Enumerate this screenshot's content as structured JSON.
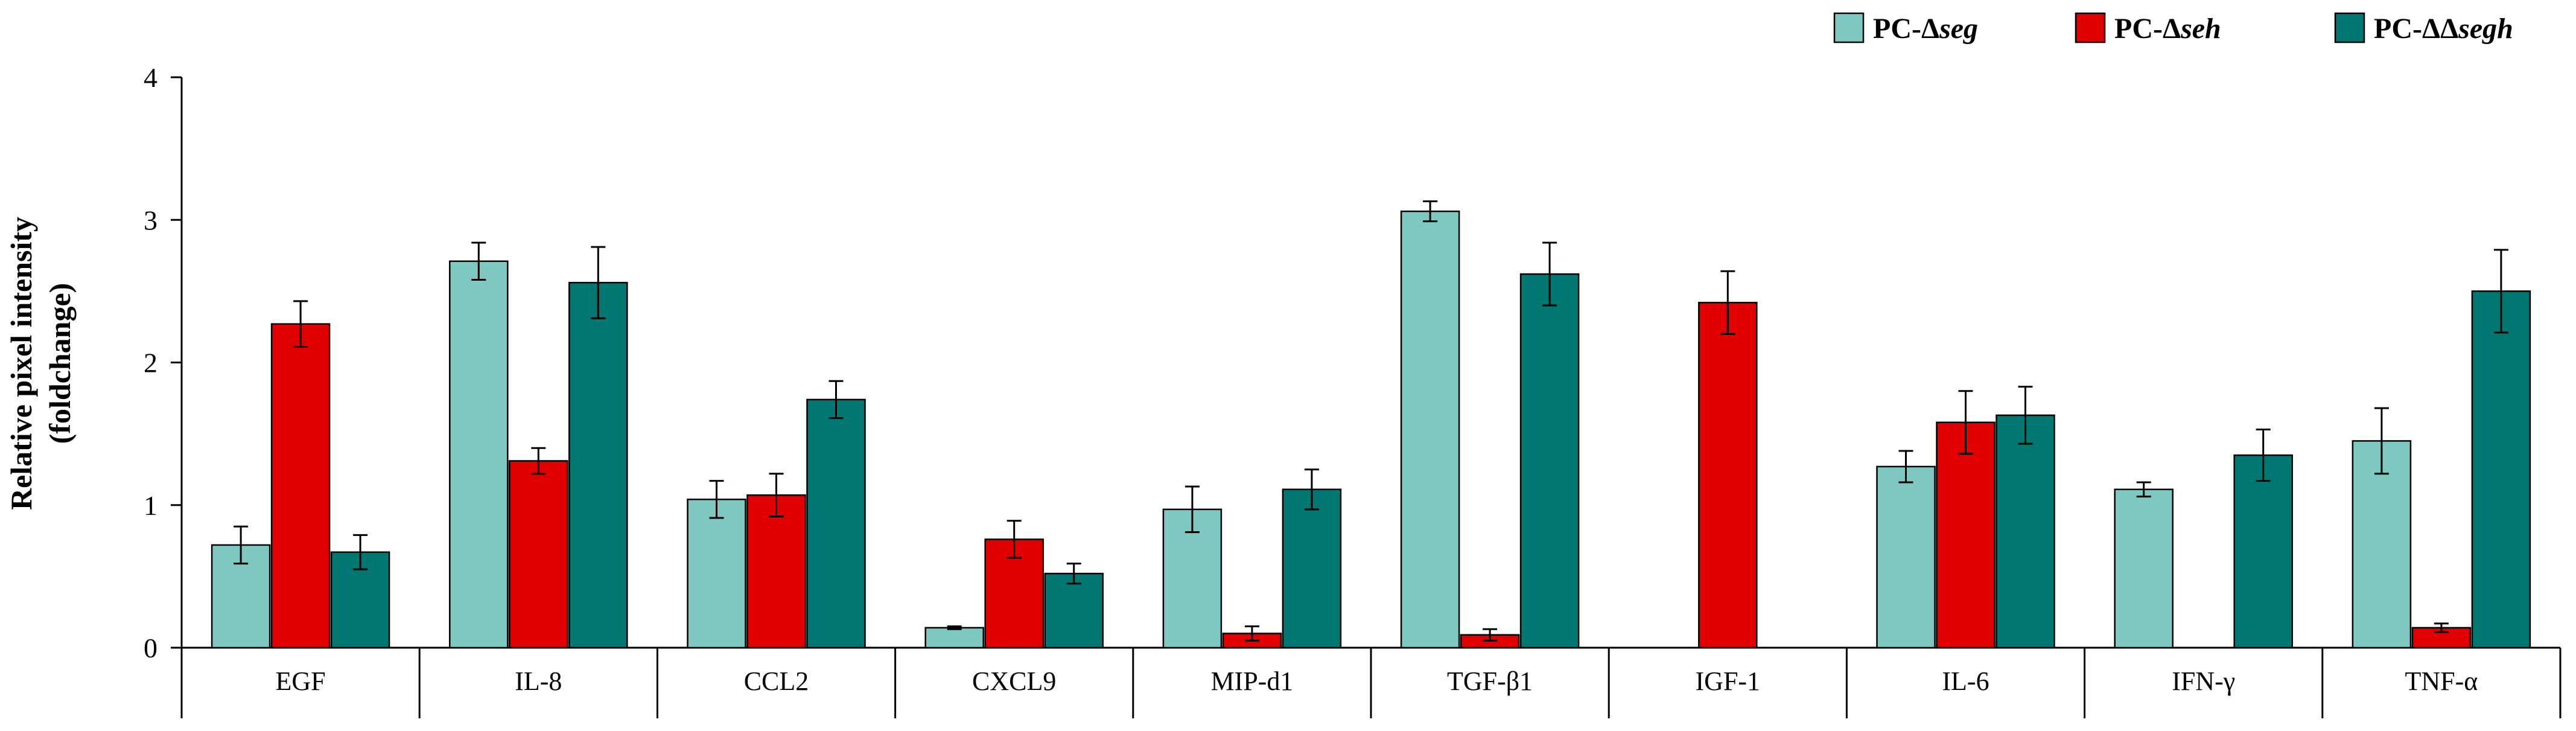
{
  "chart_data": {
    "type": "bar",
    "title": "",
    "xlabel": "",
    "ylabel_line1": "Relative pixel intensity",
    "ylabel_line2": "(foldchange)",
    "ylim": [
      0,
      4
    ],
    "yticks": [
      "0",
      "1",
      "2",
      "3",
      "4"
    ],
    "legend_position": "top-right",
    "categories": [
      "EGF",
      "IL-8",
      "CCL2",
      "CXCL9",
      "MIP-d1",
      "TGF-β1",
      "IGF-1",
      "IL-6",
      "IFN-γ",
      "TNF-α"
    ],
    "series": [
      {
        "name": "PC-Δseg",
        "legend_prefix": "PC-Δ",
        "legend_italic": "seg",
        "color": "#7fc8c1",
        "values": [
          0.72,
          2.71,
          1.04,
          0.14,
          0.97,
          3.06,
          null,
          1.27,
          1.11,
          1.45
        ],
        "errors": [
          0.13,
          0.13,
          0.13,
          0.01,
          0.16,
          0.07,
          null,
          0.11,
          0.05,
          0.23
        ]
      },
      {
        "name": "PC-Δseh",
        "legend_prefix": "PC-Δ",
        "legend_italic": "seh",
        "color": "#e00000",
        "values": [
          2.27,
          1.31,
          1.07,
          0.76,
          0.1,
          0.09,
          2.42,
          1.58,
          null,
          0.14
        ],
        "errors": [
          0.16,
          0.09,
          0.15,
          0.13,
          0.05,
          0.04,
          0.22,
          0.22,
          null,
          0.03
        ]
      },
      {
        "name": "PC-ΔΔsegh",
        "legend_prefix": "PC-ΔΔ",
        "legend_italic": "segh",
        "color": "#007770",
        "values": [
          0.67,
          2.56,
          1.74,
          0.52,
          1.11,
          2.62,
          null,
          1.63,
          1.35,
          2.5
        ],
        "errors": [
          0.12,
          0.25,
          0.13,
          0.07,
          0.14,
          0.22,
          null,
          0.2,
          0.18,
          0.29
        ]
      }
    ]
  }
}
